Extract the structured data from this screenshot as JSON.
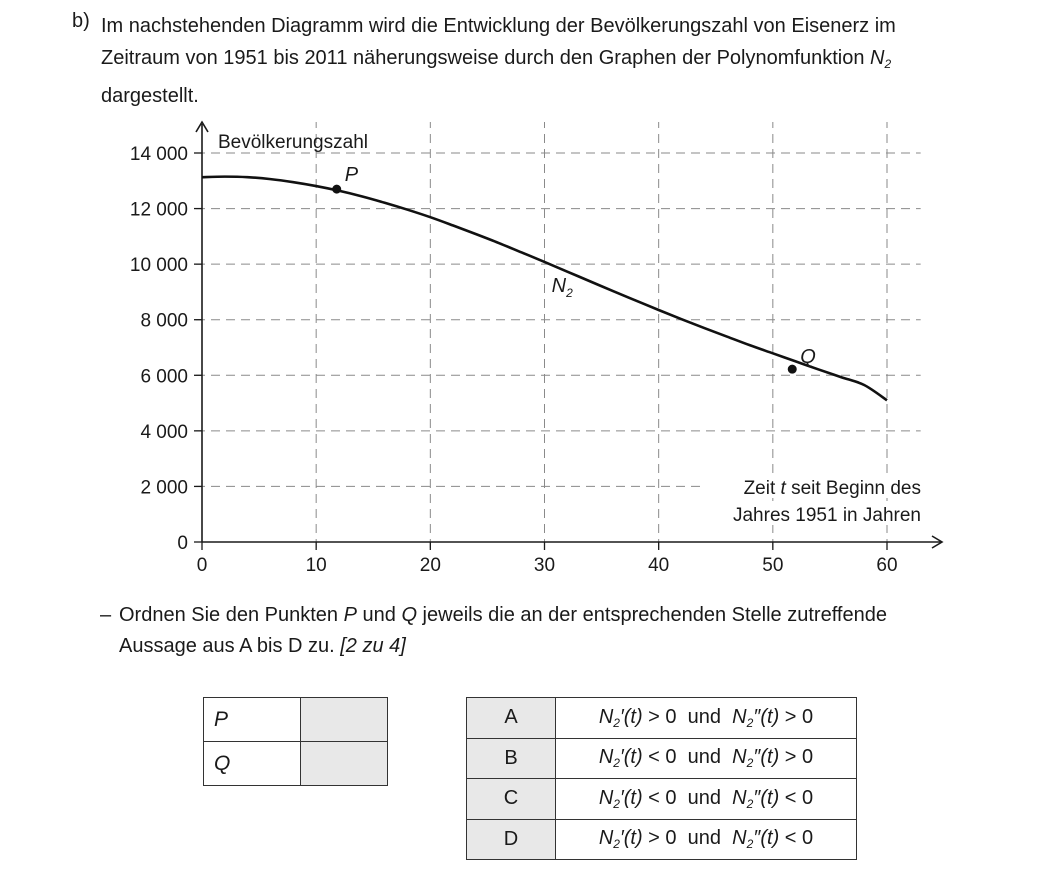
{
  "task": {
    "label": "b)",
    "intro_lines": [
      "Im nachstehenden Diagramm wird die Entwicklung der Bevölkerungszahl von Eisenerz im",
      "Zeitraum von 1951 bis 2011 näherungsweise durch den Graphen der Polynomfunktion",
      "dargestellt."
    ],
    "function_name": "N",
    "function_sub": "2"
  },
  "chart_data": {
    "type": "line",
    "ylabel": "Bevölkerungszahl",
    "xlabel_lines": [
      "Zeit t seit Beginn des",
      "Jahres 1951 in Jahren"
    ],
    "x_ticks": [
      0,
      10,
      20,
      30,
      40,
      50,
      60
    ],
    "y_ticks": [
      0,
      2000,
      4000,
      6000,
      8000,
      10000,
      12000,
      14000
    ],
    "y_tick_labels": [
      "0",
      "2 000",
      "4 000",
      "6 000",
      "8 000",
      "10 000",
      "12 000",
      "14 000"
    ],
    "xlim": [
      0,
      64
    ],
    "ylim": [
      0,
      14600
    ],
    "grid": true,
    "series": [
      {
        "name": "N2",
        "x": [
          0,
          2,
          4,
          6,
          8,
          10,
          12,
          14,
          16,
          18,
          20,
          22,
          24,
          26,
          28,
          30,
          32,
          34,
          36,
          38,
          40,
          42,
          44,
          46,
          48,
          50,
          52,
          54,
          56,
          58,
          60
        ],
        "y": [
          13130,
          13150,
          13130,
          13060,
          12950,
          12810,
          12640,
          12440,
          12210,
          11960,
          11690,
          11390,
          11080,
          10760,
          10420,
          10080,
          9730,
          9380,
          9030,
          8690,
          8350,
          8020,
          7700,
          7390,
          7080,
          6790,
          6500,
          6210,
          5930,
          5650,
          5100
        ]
      }
    ],
    "points": [
      {
        "label": "P",
        "x": 11.8,
        "y": 12700
      },
      {
        "label": "Q",
        "x": 51.7,
        "y": 6220
      }
    ],
    "series_label_position": {
      "x": 28,
      "y": 9000
    }
  },
  "instruction": {
    "dash": "–",
    "line1": "Ordnen Sie den Punkten P und Q jeweils die an der entsprechenden Stelle zutreffende",
    "line2_text": "Aussage aus A bis D zu.",
    "points_note": "[2 zu 4]"
  },
  "assign_table": [
    {
      "label": "P",
      "value": ""
    },
    {
      "label": "Q",
      "value": ""
    }
  ],
  "options": [
    {
      "key": "A",
      "first_sign": ">",
      "second_sign": ">"
    },
    {
      "key": "B",
      "first_sign": "<",
      "second_sign": ">"
    },
    {
      "key": "C",
      "first_sign": "<",
      "second_sign": "<"
    },
    {
      "key": "D",
      "first_sign": ">",
      "second_sign": "<"
    }
  ],
  "option_text": {
    "fn": "N",
    "sub": "2",
    "prime1": "′",
    "prime2": "″",
    "arg": "(t)",
    "zero": "0",
    "und": "und"
  }
}
